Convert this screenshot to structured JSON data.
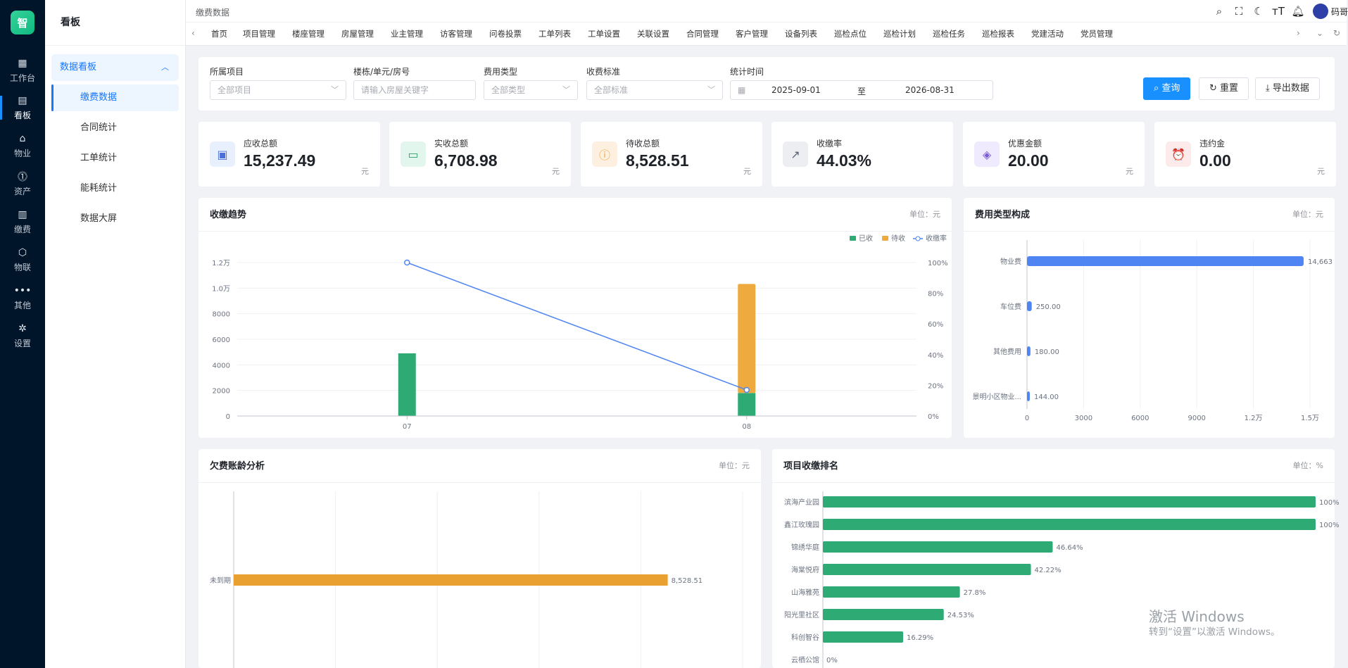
{
  "app": {
    "logo_text": "智",
    "side_title": "看板"
  },
  "rail": [
    {
      "label": "工作台",
      "icon": "workbench-icon",
      "glyph": "▦"
    },
    {
      "label": "看板",
      "icon": "dashboard-icon",
      "glyph": "▤"
    },
    {
      "label": "物业",
      "icon": "home-icon",
      "glyph": "⌂"
    },
    {
      "label": "资产",
      "icon": "asset-icon",
      "glyph": "⓵"
    },
    {
      "label": "缴费",
      "icon": "bill-icon",
      "glyph": "▥"
    },
    {
      "label": "物联",
      "icon": "iot-icon",
      "glyph": "⬡"
    },
    {
      "label": "其他",
      "icon": "more-icon",
      "glyph": "•••"
    },
    {
      "label": "设置",
      "icon": "settings-icon",
      "glyph": "✲"
    }
  ],
  "side": {
    "group": "数据看板",
    "items": [
      "缴费数据",
      "合同统计",
      "工单统计",
      "能耗统计",
      "数据大屏"
    ]
  },
  "topbar": {
    "breadcrumb": "缴费数据",
    "user": "码哥"
  },
  "tabs": [
    "首页",
    "项目管理",
    "楼座管理",
    "房屋管理",
    "业主管理",
    "访客管理",
    "问卷投票",
    "工单列表",
    "工单设置",
    "关联设置",
    "合同管理",
    "客户管理",
    "设备列表",
    "巡检点位",
    "巡检计划",
    "巡检任务",
    "巡检报表",
    "党建活动",
    "党员管理"
  ],
  "filters": {
    "project": {
      "label": "所属项目",
      "value": "全部项目"
    },
    "building": {
      "label": "楼栋/单元/房号",
      "placeholder": "请输入房屋关键字"
    },
    "fee_type": {
      "label": "费用类型",
      "value": "全部类型"
    },
    "standard": {
      "label": "收费标准",
      "value": "全部标准"
    },
    "period": {
      "label": "统计时间",
      "start": "2025-09-01",
      "sep": "至",
      "end": "2026-08-31"
    },
    "query_btn": "查询",
    "reset_btn": "重置",
    "export_btn": "导出数据"
  },
  "kpis": [
    {
      "label": "应收总额",
      "value": "15,237.49",
      "unit": "元",
      "icon": "receivable-icon",
      "bg": "#e8f0fe",
      "fg": "#4a6fd8",
      "glyph": "▣"
    },
    {
      "label": "实收总额",
      "value": "6,708.98",
      "unit": "元",
      "icon": "wallet-icon",
      "bg": "#e3f6ee",
      "fg": "#2e9e6b",
      "glyph": "▭"
    },
    {
      "label": "待收总额",
      "value": "8,528.51",
      "unit": "元",
      "icon": "pending-icon",
      "bg": "#fdf0e0",
      "fg": "#e8a33d",
      "glyph": "ⓘ"
    },
    {
      "label": "收缴率",
      "value": "44.03%",
      "unit": "",
      "icon": "trend-icon",
      "bg": "#eceef2",
      "fg": "#5a6275",
      "glyph": "↗"
    },
    {
      "label": "优惠金额",
      "value": "20.00",
      "unit": "元",
      "icon": "discount-icon",
      "bg": "#efeafd",
      "fg": "#7c5bd6",
      "glyph": "◈"
    },
    {
      "label": "违约金",
      "value": "0.00",
      "unit": "元",
      "icon": "alarm-icon",
      "bg": "#fdeaea",
      "fg": "#e05555",
      "glyph": "⏰"
    }
  ],
  "panels": {
    "trend": {
      "title": "收缴趋势",
      "unit": "单位：元"
    },
    "composition": {
      "title": "费用类型构成",
      "unit": "单位：元"
    },
    "aging": {
      "title": "欠费账龄分析",
      "unit": "单位：元"
    },
    "ranking": {
      "title": "项目收缴排名",
      "unit": "单位：%"
    }
  },
  "colors": {
    "paid": "#2eaa74",
    "pending": "#eeaa3e",
    "rate": "#4e85f2",
    "blue": "#4e85f2",
    "orange": "#e9a030",
    "green": "#2eaa74"
  },
  "chart_data": [
    {
      "type": "bar",
      "name": "收缴趋势",
      "categories": [
        "07",
        "08"
      ],
      "series": [
        {
          "name": "已收",
          "stack": "a",
          "values": [
            4900,
            1800
          ]
        },
        {
          "name": "待收",
          "stack": "a",
          "values": [
            0,
            8529
          ]
        },
        {
          "name": "收缴率",
          "type": "line",
          "axis": "right",
          "values": [
            100,
            17
          ]
        }
      ],
      "y_ticks": [
        "0",
        "2000",
        "4000",
        "6000",
        "8000",
        "1.0万",
        "1.2万"
      ],
      "ylim": [
        0,
        12000
      ],
      "y2_ticks": [
        "0%",
        "20%",
        "40%",
        "60%",
        "80%",
        "100%"
      ],
      "y2lim": [
        0,
        100
      ],
      "legend": [
        "已收",
        "待收",
        "收缴率"
      ]
    },
    {
      "type": "bar",
      "orientation": "horizontal",
      "name": "费用类型构成",
      "categories": [
        "物业费",
        "车位费",
        "其他费用",
        "景明小区物业..."
      ],
      "values": [
        14663,
        250,
        180,
        144
      ],
      "labels": [
        "14,663",
        "250.00",
        "180.00",
        "144.00"
      ],
      "x_ticks": [
        "0",
        "3000",
        "6000",
        "9000",
        "1.2万",
        "1.5万"
      ],
      "xlim": [
        0,
        15000
      ]
    },
    {
      "type": "bar",
      "orientation": "horizontal",
      "name": "欠费账龄分析",
      "categories": [
        "未到期"
      ],
      "values": [
        8528.51
      ],
      "labels": [
        "8,528.51"
      ],
      "xlim": [
        0,
        10000
      ]
    },
    {
      "type": "bar",
      "orientation": "horizontal",
      "name": "项目收缴排名",
      "categories": [
        "滨海产业园",
        "鑫江玫瑰园",
        "锦绣华庭",
        "海棠悦府",
        "山海雅苑",
        "阳光里社区",
        "科创智谷",
        "云栖公馆"
      ],
      "values": [
        100,
        100,
        46.64,
        42.22,
        27.8,
        24.53,
        16.29,
        0
      ],
      "labels": [
        "100%",
        "100%",
        "46.64%",
        "42.22%",
        "27.8%",
        "24.53%",
        "16.29%",
        "0%"
      ],
      "xlim": [
        0,
        100
      ]
    }
  ],
  "watermark": {
    "line1": "激活 Windows",
    "line2": "转到“设置”以激活 Windows。"
  }
}
